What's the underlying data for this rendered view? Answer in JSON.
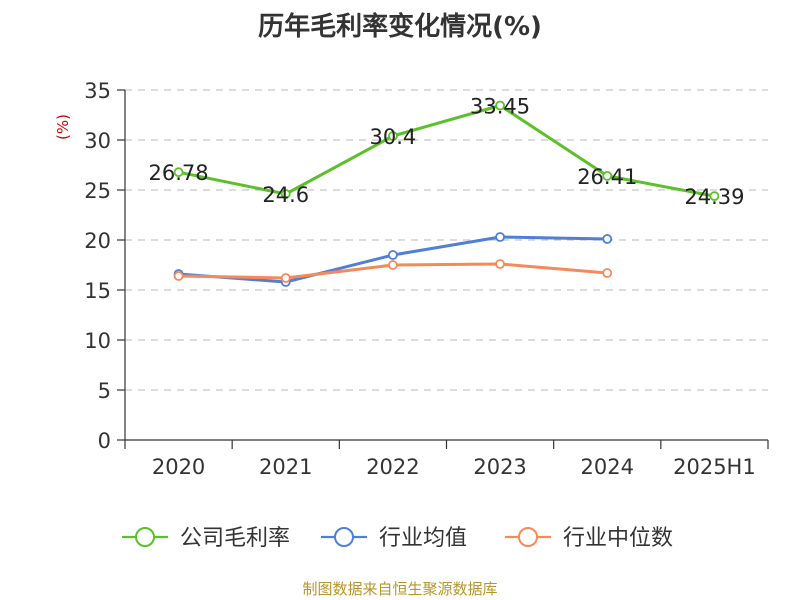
{
  "source_note": "制图数据来自恒生聚源数据库",
  "chart_data": {
    "type": "line",
    "title": "历年毛利率变化情况(%)",
    "ylabel": "(%)",
    "xlabel": "",
    "categories": [
      "2020",
      "2021",
      "2022",
      "2023",
      "2024",
      "2025H1"
    ],
    "ylim": [
      0,
      35
    ],
    "yticks": [
      "0",
      "5",
      "10",
      "15",
      "20",
      "25",
      "30",
      "35"
    ],
    "grid": true,
    "legend_position": "bottom",
    "series": [
      {
        "name": "公司毛利率",
        "color": "#5bc02a",
        "values": [
          26.78,
          24.6,
          30.4,
          33.45,
          26.41,
          24.39
        ],
        "labels": [
          "26.78",
          "24.6",
          "30.4",
          "33.45",
          "26.41",
          "24.39"
        ]
      },
      {
        "name": "行业均值",
        "color": "#4f7fd8",
        "values": [
          16.6,
          15.8,
          18.5,
          20.3,
          20.1,
          null
        ],
        "labels": []
      },
      {
        "name": "行业中位数",
        "color": "#f5895a",
        "values": [
          16.4,
          16.2,
          17.5,
          17.6,
          16.7,
          null
        ],
        "labels": []
      }
    ]
  }
}
